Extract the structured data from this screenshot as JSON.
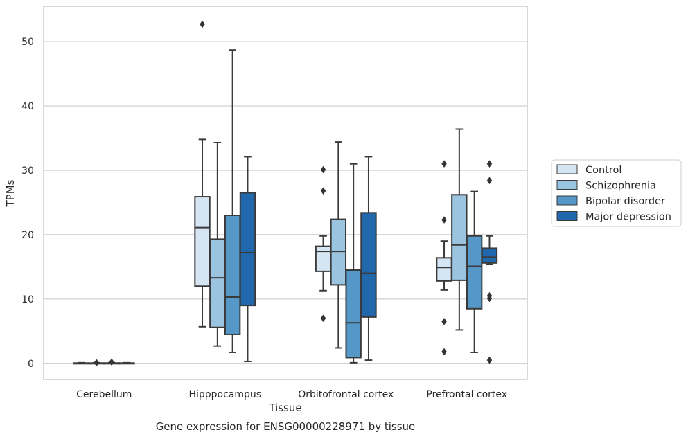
{
  "chart_data": {
    "type": "box",
    "title": "",
    "caption": "Gene expression for ENSG00000228971 by tissue",
    "xlabel": "Tissue",
    "ylabel": "TPMs",
    "ylim": [
      -2.5,
      55.5
    ],
    "yticks": [
      0,
      10,
      20,
      30,
      40,
      50
    ],
    "grid": "horizontal",
    "legend_position": "right",
    "categories": [
      "Cerebellum",
      "Hipppocampus",
      "Orbitofrontal cortex",
      "Prefrontal cortex"
    ],
    "series": [
      {
        "name": "Control",
        "color": "#d6e5f4",
        "boxes": [
          {
            "whislo": 0.0,
            "q1": 0.0,
            "med": 0.0,
            "q3": 0.05,
            "whishi": 0.1,
            "fliers": []
          },
          {
            "whislo": 5.7,
            "q1": 12.0,
            "med": 21.1,
            "q3": 25.9,
            "whishi": 34.8,
            "fliers": [
              52.7
            ]
          },
          {
            "whislo": 11.3,
            "q1": 14.3,
            "med": 17.4,
            "q3": 18.2,
            "whishi": 19.8,
            "fliers": [
              30.1,
              26.8,
              7.0
            ]
          },
          {
            "whislo": 11.4,
            "q1": 12.8,
            "med": 14.9,
            "q3": 16.4,
            "whishi": 19.0,
            "fliers": [
              31.0,
              22.3,
              6.5,
              1.8
            ]
          }
        ]
      },
      {
        "name": "Schizophrenia",
        "color": "#9ac4df",
        "boxes": [
          {
            "whislo": 0.0,
            "q1": 0.0,
            "med": 0.0,
            "q3": 0.05,
            "whishi": 0.1,
            "fliers": [
              0.1
            ]
          },
          {
            "whislo": 2.7,
            "q1": 5.6,
            "med": 13.3,
            "q3": 19.3,
            "whishi": 34.3,
            "fliers": []
          },
          {
            "whislo": 2.4,
            "q1": 12.2,
            "med": 17.4,
            "q3": 22.4,
            "whishi": 34.4,
            "fliers": []
          },
          {
            "whislo": 5.2,
            "q1": 12.9,
            "med": 18.4,
            "q3": 26.2,
            "whishi": 36.4,
            "fliers": []
          }
        ]
      },
      {
        "name": "Bipolar disorder",
        "color": "#5598c8",
        "boxes": [
          {
            "whislo": 0.0,
            "q1": 0.0,
            "med": 0.0,
            "q3": 0.05,
            "whishi": 0.1,
            "fliers": [
              0.2
            ]
          },
          {
            "whislo": 1.7,
            "q1": 4.5,
            "med": 10.3,
            "q3": 23.0,
            "whishi": 48.7,
            "fliers": []
          },
          {
            "whislo": 0.1,
            "q1": 0.9,
            "med": 6.3,
            "q3": 14.5,
            "whishi": 31.0,
            "fliers": []
          },
          {
            "whislo": 1.7,
            "q1": 8.5,
            "med": 15.1,
            "q3": 19.8,
            "whishi": 26.7,
            "fliers": []
          }
        ]
      },
      {
        "name": "Major depression",
        "color": "#2167ac",
        "boxes": [
          {
            "whislo": 0.0,
            "q1": 0.0,
            "med": 0.0,
            "q3": 0.05,
            "whishi": 0.1,
            "fliers": []
          },
          {
            "whislo": 0.3,
            "q1": 9.0,
            "med": 17.2,
            "q3": 26.5,
            "whishi": 32.1,
            "fliers": []
          },
          {
            "whislo": 0.5,
            "q1": 7.2,
            "med": 14.0,
            "q3": 23.4,
            "whishi": 32.1,
            "fliers": []
          },
          {
            "whislo": 15.4,
            "q1": 15.6,
            "med": 16.5,
            "q3": 17.9,
            "whishi": 19.8,
            "fliers": [
              31.0,
              28.4,
              10.5,
              10.1,
              0.5
            ]
          }
        ]
      }
    ]
  }
}
